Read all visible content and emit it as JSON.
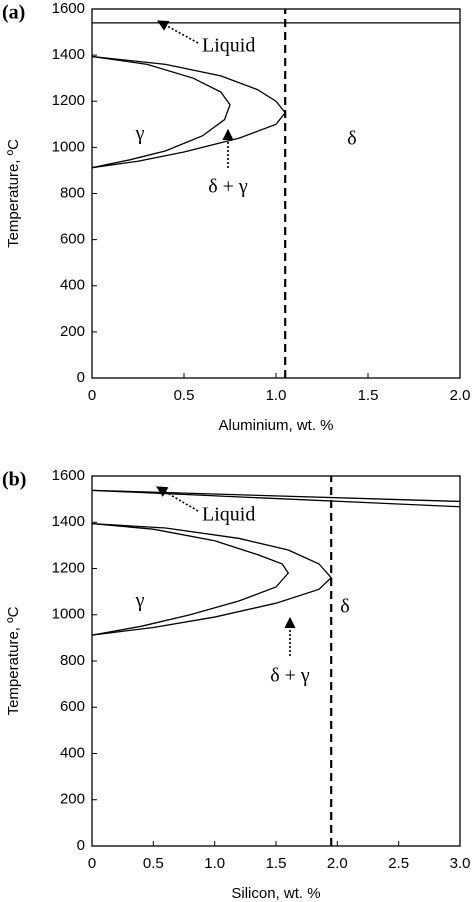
{
  "chart_data": [
    {
      "type": "line",
      "panel_label": "(a)",
      "xlabel": "Aluminium, wt. %",
      "ylabel": "Temperature, ºC",
      "xlim": [
        0,
        2
      ],
      "xticks": [
        0,
        0.5,
        {
          "value": 1,
          "label": "1.0"
        },
        1.5,
        {
          "value": 2,
          "label": "2.0"
        }
      ],
      "ylim": [
        0,
        1600
      ],
      "yticks": [
        0,
        200,
        400,
        600,
        800,
        1000,
        1200,
        1400,
        1600
      ],
      "series": [
        {
          "color": "#000000",
          "linestyle": "solid",
          "x": [
            0,
            2
          ],
          "values": [
            1540,
            1540
          ]
        },
        {
          "color": "#000000",
          "linestyle": "solid",
          "x": [
            0,
            0.3,
            0.55,
            0.7,
            0.75,
            0.72,
            0.6,
            0.4,
            0.2,
            0
          ],
          "values": [
            1394,
            1360,
            1300,
            1240,
            1185,
            1120,
            1050,
            985,
            945,
            912
          ]
        },
        {
          "color": "#000000",
          "linestyle": "solid",
          "x": [
            0,
            0.4,
            0.7,
            0.9,
            1.0,
            1.05,
            1.0,
            0.8,
            0.5,
            0.25,
            0
          ],
          "values": [
            1394,
            1360,
            1310,
            1250,
            1200,
            1150,
            1100,
            1040,
            980,
            940,
            912
          ]
        },
        {
          "color": "#000000",
          "linestyle": "dashed",
          "x": [
            1.05,
            1.05
          ],
          "values": [
            0,
            1600
          ]
        }
      ],
      "annotations": [
        "Liquid",
        "γ",
        "δ",
        "δ + γ"
      ]
    },
    {
      "type": "line",
      "panel_label": "(b)",
      "xlabel": "Silicon, wt. %",
      "ylabel": "Temperature, ºC",
      "xlim": [
        0,
        3
      ],
      "xticks": [
        0,
        0.5,
        {
          "value": 1,
          "label": "1.0"
        },
        1.5,
        {
          "value": 2,
          "label": "2.0"
        },
        2.5,
        {
          "value": 3,
          "label": "3.0"
        }
      ],
      "ylim": [
        0,
        1600
      ],
      "yticks": [
        0,
        200,
        400,
        600,
        800,
        1000,
        1200,
        1400,
        1600
      ],
      "series": [
        {
          "color": "#000000",
          "linestyle": "solid",
          "x": [
            0,
            3
          ],
          "values": [
            1538,
            1490
          ]
        },
        {
          "color": "#000000",
          "linestyle": "solid",
          "x": [
            0,
            3
          ],
          "values": [
            1538,
            1467
          ]
        },
        {
          "color": "#000000",
          "linestyle": "solid",
          "x": [
            0,
            0.5,
            1.0,
            1.35,
            1.55,
            1.6,
            1.5,
            1.2,
            0.8,
            0.4,
            0
          ],
          "values": [
            1394,
            1370,
            1320,
            1260,
            1220,
            1180,
            1120,
            1060,
            1000,
            950,
            912
          ]
        },
        {
          "color": "#000000",
          "linestyle": "solid",
          "x": [
            0,
            0.6,
            1.2,
            1.6,
            1.85,
            1.95,
            1.85,
            1.5,
            1.0,
            0.5,
            0
          ],
          "values": [
            1394,
            1375,
            1330,
            1280,
            1220,
            1160,
            1110,
            1050,
            990,
            945,
            912
          ]
        },
        {
          "color": "#000000",
          "linestyle": "dashed",
          "x": [
            1.95,
            1.95
          ],
          "values": [
            0,
            1600
          ]
        }
      ],
      "annotations": [
        "Liquid",
        "γ",
        "δ",
        "δ + γ"
      ]
    }
  ]
}
